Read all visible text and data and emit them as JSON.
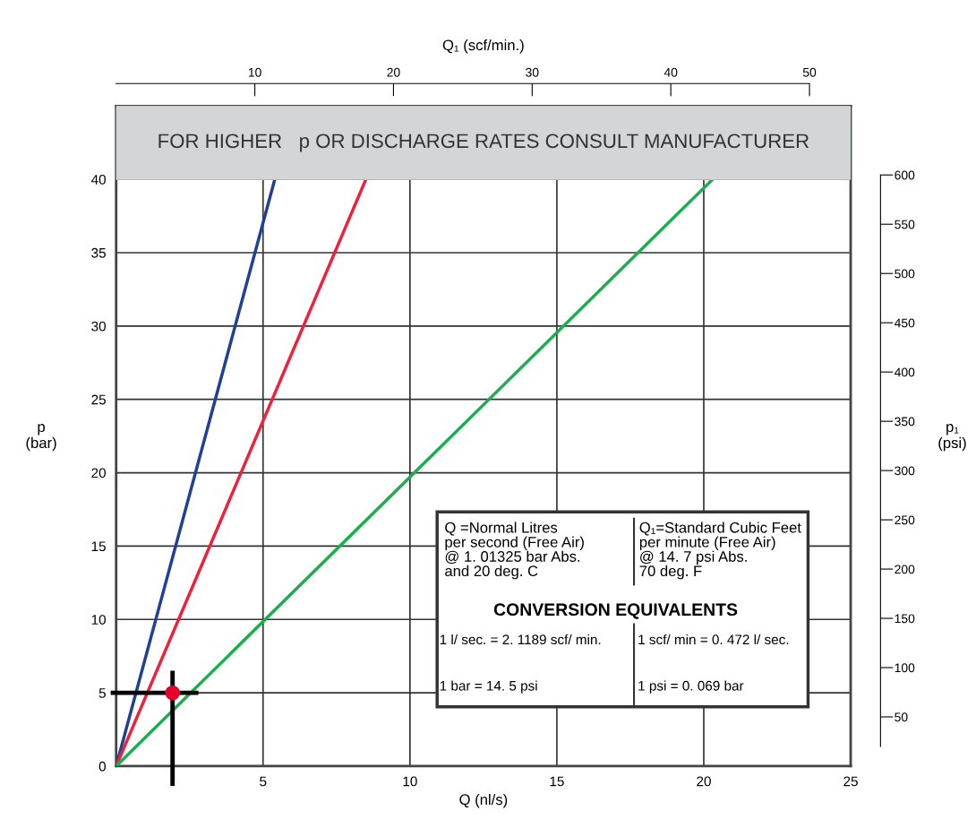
{
  "chart_data": {
    "type": "line",
    "xlabel": "Q (nl/s)",
    "ylabel": "p\n(bar)",
    "x2label": "Q₁ (scf/min.)",
    "y2label": "p₁\n(psi)",
    "xlim": [
      0,
      25
    ],
    "xticks": [
      5,
      10,
      15,
      20,
      25
    ],
    "ylim": [
      0,
      45
    ],
    "yticks": [
      0,
      5,
      10,
      15,
      20,
      25,
      30,
      35,
      40
    ],
    "x2lim": [
      0,
      52.97
    ],
    "x2ticks": [
      10,
      20,
      30,
      40,
      50
    ],
    "y2lim": [
      0,
      670
    ],
    "y2ticks": [
      50,
      100,
      150,
      200,
      250,
      300,
      350,
      400,
      450,
      500,
      550,
      600
    ],
    "grid": true,
    "line_style": "solid",
    "series": [
      {
        "color": "#1f3f99",
        "x": [
          0,
          5.4
        ],
        "values": [
          0,
          40
        ]
      },
      {
        "color": "#f0203c",
        "x": [
          0,
          8.5
        ],
        "values": [
          0,
          40
        ]
      },
      {
        "color": "#1aae4f",
        "x": [
          0,
          20.3
        ],
        "values": [
          0,
          40
        ]
      },
      {
        "type": "scatter",
        "marker": "circle",
        "color": "#e8002d",
        "x": [
          1.92
        ],
        "values": [
          5
        ]
      }
    ],
    "bands": [
      {
        "axis": "y",
        "from": 40,
        "to": 45,
        "label": "FOR HIGHER   p OR DISCHARGE RATES CONSULT MANUFACTURER",
        "color": "#d4d5d7"
      }
    ],
    "annotations": [
      "Q =Normal Litres\nper second (Free Air)\n@ 1. 01325 bar Abs.\nand 20 deg. C",
      "Q₁=Standard Cubic Feet\nper minute (Free Air)\n@ 14. 7 psi Abs.\n70 deg. F",
      "CONVERSION EQUIVALENTS",
      "1 l/ sec. = 2. 1189 scf/ min.",
      "1 scf/ min = 0. 472 l/ sec.",
      "1 bar = 14. 5 psi",
      "1 psi = 0. 069 bar"
    ]
  }
}
